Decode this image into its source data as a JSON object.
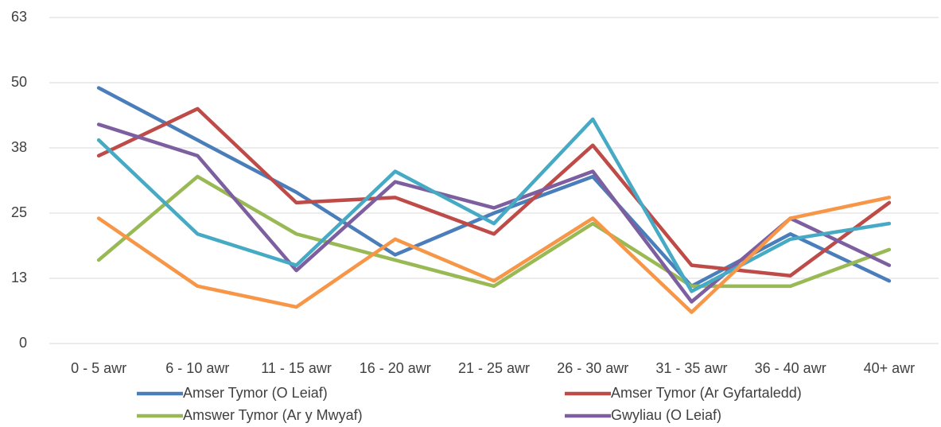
{
  "chart_data": {
    "type": "line",
    "categories": [
      "0 - 5 awr",
      "6 - 10 awr",
      "11 - 15 awr",
      "16 - 20 awr",
      "21 - 25 awr",
      "26 - 30 awr",
      "31 - 35 awr",
      "36 - 40 awr",
      "40+ awr"
    ],
    "series": [
      {
        "name": "Amser Tymor (O Leiaf)",
        "color": "#4a7ebb",
        "values": [
          49,
          39,
          29,
          17,
          25,
          32,
          11,
          21,
          12
        ]
      },
      {
        "name": "Amser Tymor (Ar Gyfartaledd)",
        "color": "#be4b48",
        "values": [
          36,
          45,
          27,
          28,
          21,
          38,
          15,
          13,
          27
        ]
      },
      {
        "name": "Amswer Tymor (Ar y Mwyaf)",
        "color": "#98b954",
        "values": [
          16,
          32,
          21,
          16,
          11,
          23,
          11,
          11,
          18
        ]
      },
      {
        "name": "Gwyliau (O Leiaf)",
        "color": "#7d5fa0",
        "values": [
          42,
          36,
          14,
          31,
          26,
          33,
          8,
          24,
          15
        ]
      },
      {
        "color": "#46aac5",
        "values": [
          39,
          21,
          15,
          33,
          23,
          43,
          10,
          20,
          23
        ]
      },
      {
        "color": "#f79646",
        "values": [
          24,
          11,
          7,
          20,
          12,
          24,
          6,
          24,
          28
        ]
      }
    ],
    "ylim": [
      0,
      62.5
    ],
    "yticks": [
      0,
      {
        "value": 12.5,
        "label": "13"
      },
      25,
      {
        "value": 37.5,
        "label": "38"
      },
      50,
      {
        "value": 62.5,
        "label": "63"
      }
    ],
    "grid": true,
    "legend": "bottom"
  }
}
